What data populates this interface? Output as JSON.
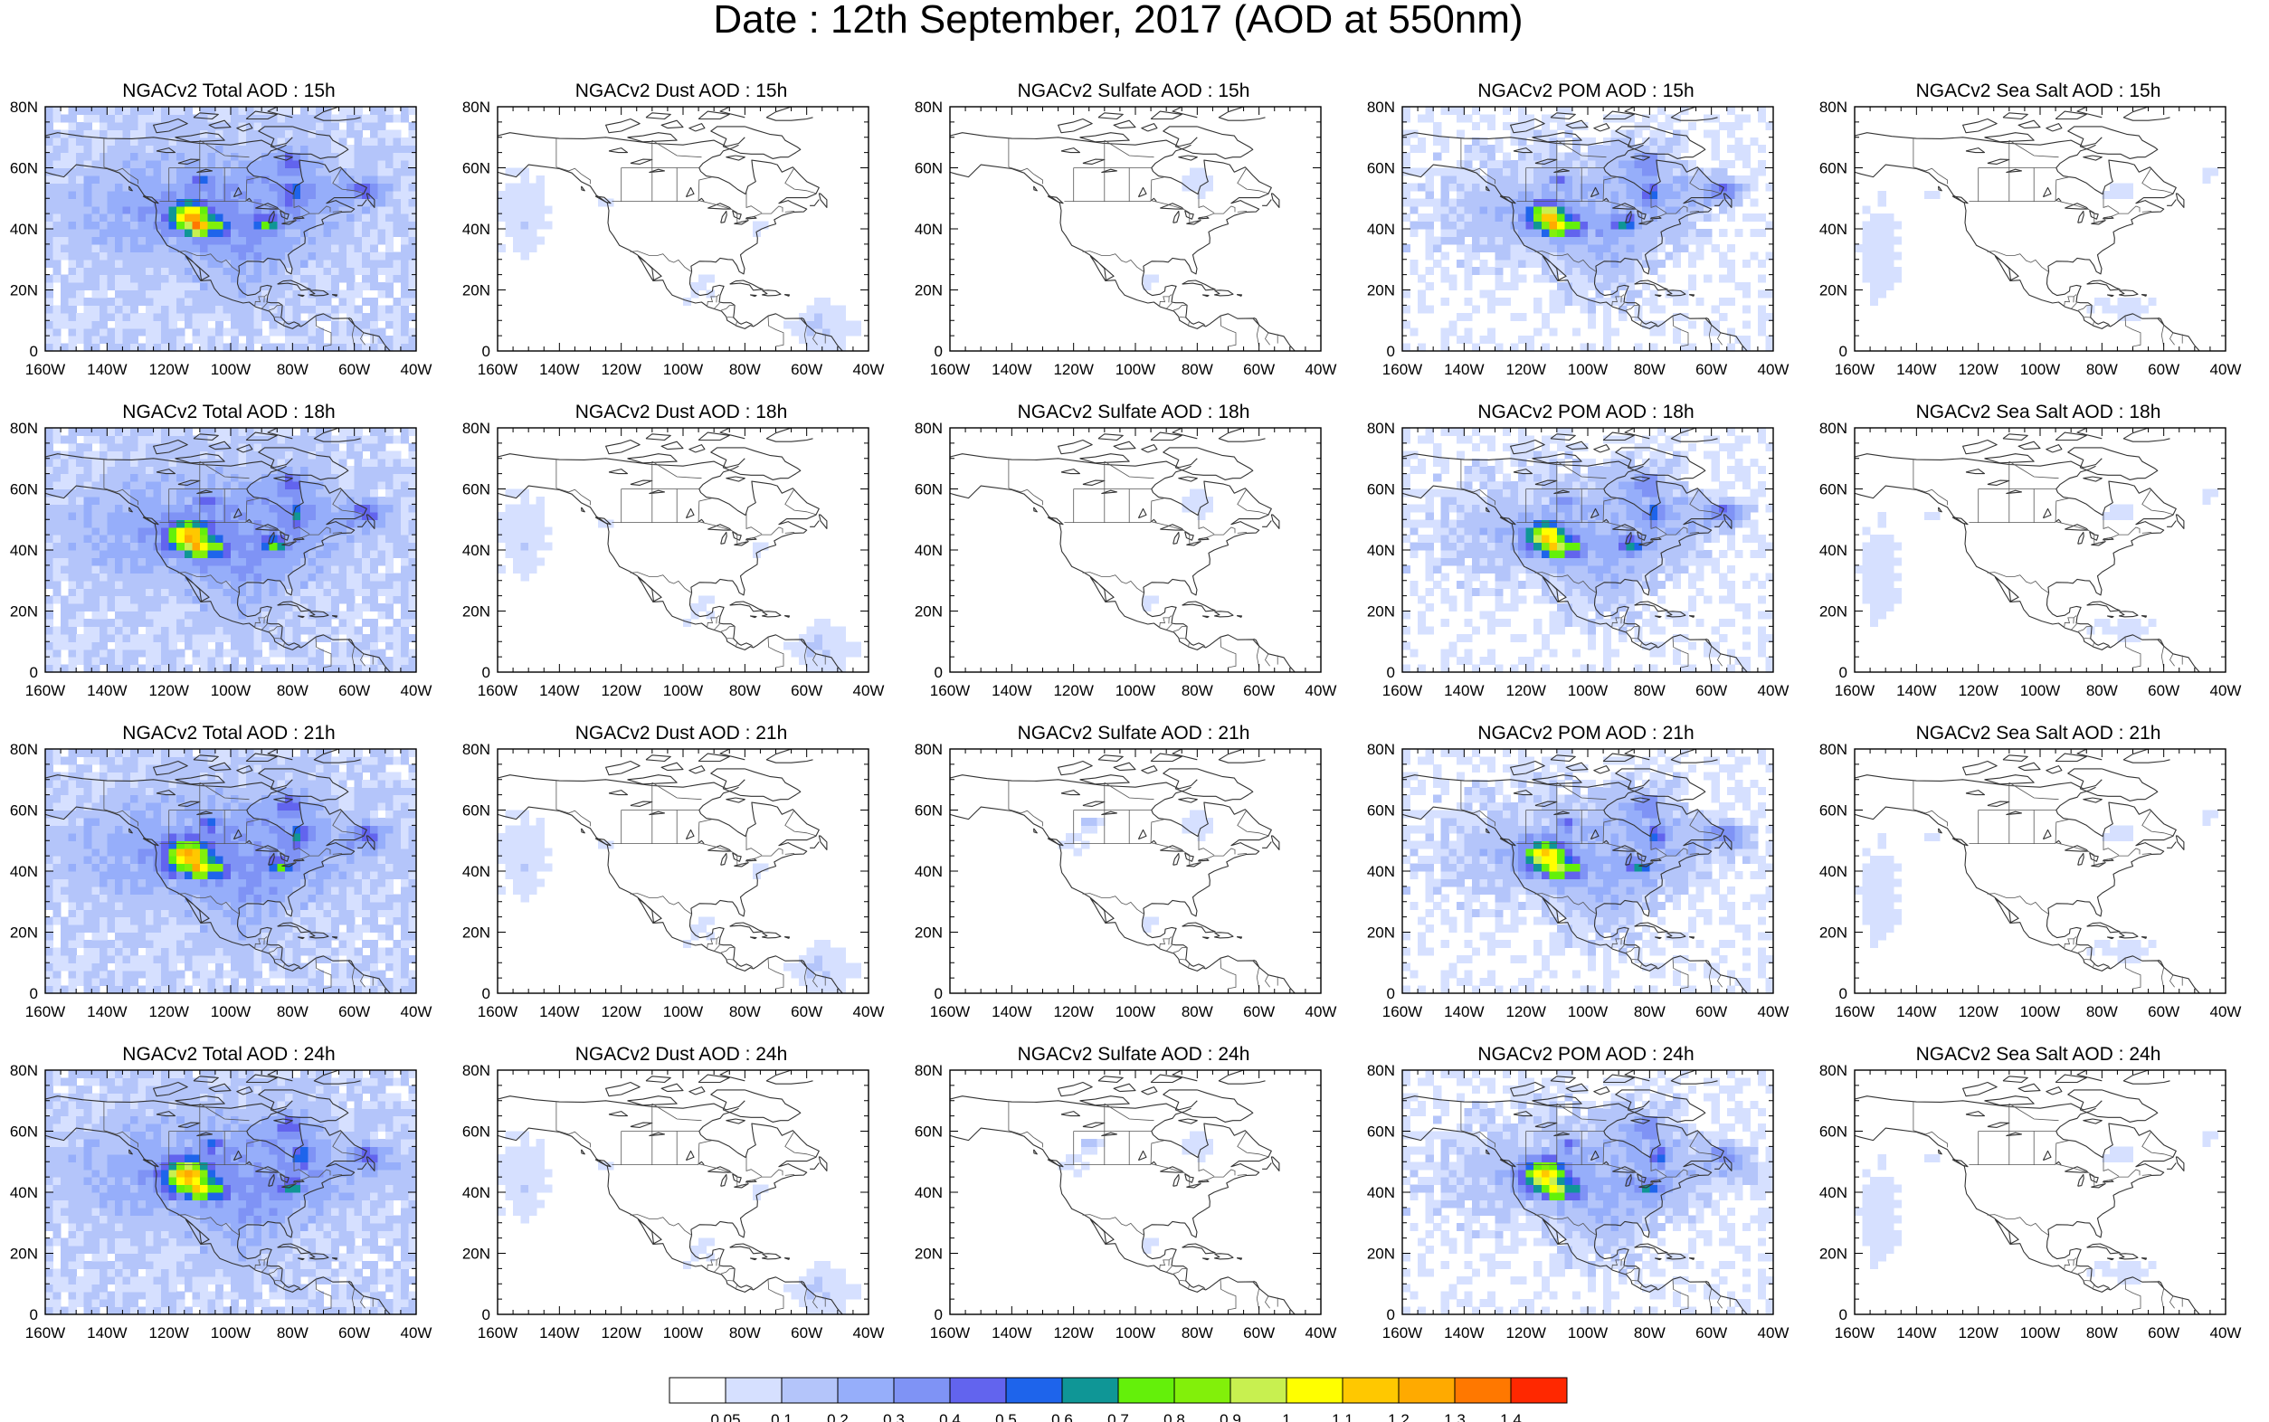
{
  "title": "Date : 12th September, 2017 (AOD at 550nm)",
  "panels": [
    [
      "NGACv2 Total AOD : 15h",
      "NGACv2 Dust AOD : 15h",
      "NGACv2 Sulfate AOD : 15h",
      "NGACv2 POM AOD : 15h",
      "NGACv2 Sea Salt AOD : 15h"
    ],
    [
      "NGACv2 Total AOD : 18h",
      "NGACv2 Dust AOD : 18h",
      "NGACv2 Sulfate AOD : 18h",
      "NGACv2 POM AOD : 18h",
      "NGACv2 Sea Salt AOD : 18h"
    ],
    [
      "NGACv2 Total AOD : 21h",
      "NGACv2 Dust AOD : 21h",
      "NGACv2 Sulfate AOD : 21h",
      "NGACv2 POM AOD : 21h",
      "NGACv2 Sea Salt AOD : 21h"
    ],
    [
      "NGACv2 Total AOD : 24h",
      "NGACv2 Dust AOD : 24h",
      "NGACv2 Sulfate AOD : 24h",
      "NGACv2 POM AOD : 24h",
      "NGACv2 Sea Salt  AOD : 24h"
    ]
  ],
  "species": [
    "total",
    "dust",
    "sulfate",
    "pom",
    "seasalt"
  ],
  "lat_labels": [
    "80N",
    "60N",
    "40N",
    "20N",
    "0"
  ],
  "lon_labels": [
    "160W",
    "140W",
    "120W",
    "100W",
    "80W",
    "60W",
    "40W"
  ],
  "colorbar": {
    "colors": [
      "#ffffff",
      "#d6e0ff",
      "#b4c5fa",
      "#96aefa",
      "#7f93f5",
      "#6264ee",
      "#1e64eb",
      "#0f9696",
      "#64f00a",
      "#82f00a",
      "#c8f050",
      "#ffff00",
      "#ffc800",
      "#ffaa00",
      "#ff7800",
      "#ff2800"
    ],
    "labels": [
      "0.05",
      "0.1",
      "0.2",
      "0.3",
      "0.4",
      "0.5",
      "0.6",
      "0.7",
      "0.8",
      "0.9",
      "1",
      "1.1",
      "1.2",
      "1.3",
      "1.4"
    ]
  }
}
